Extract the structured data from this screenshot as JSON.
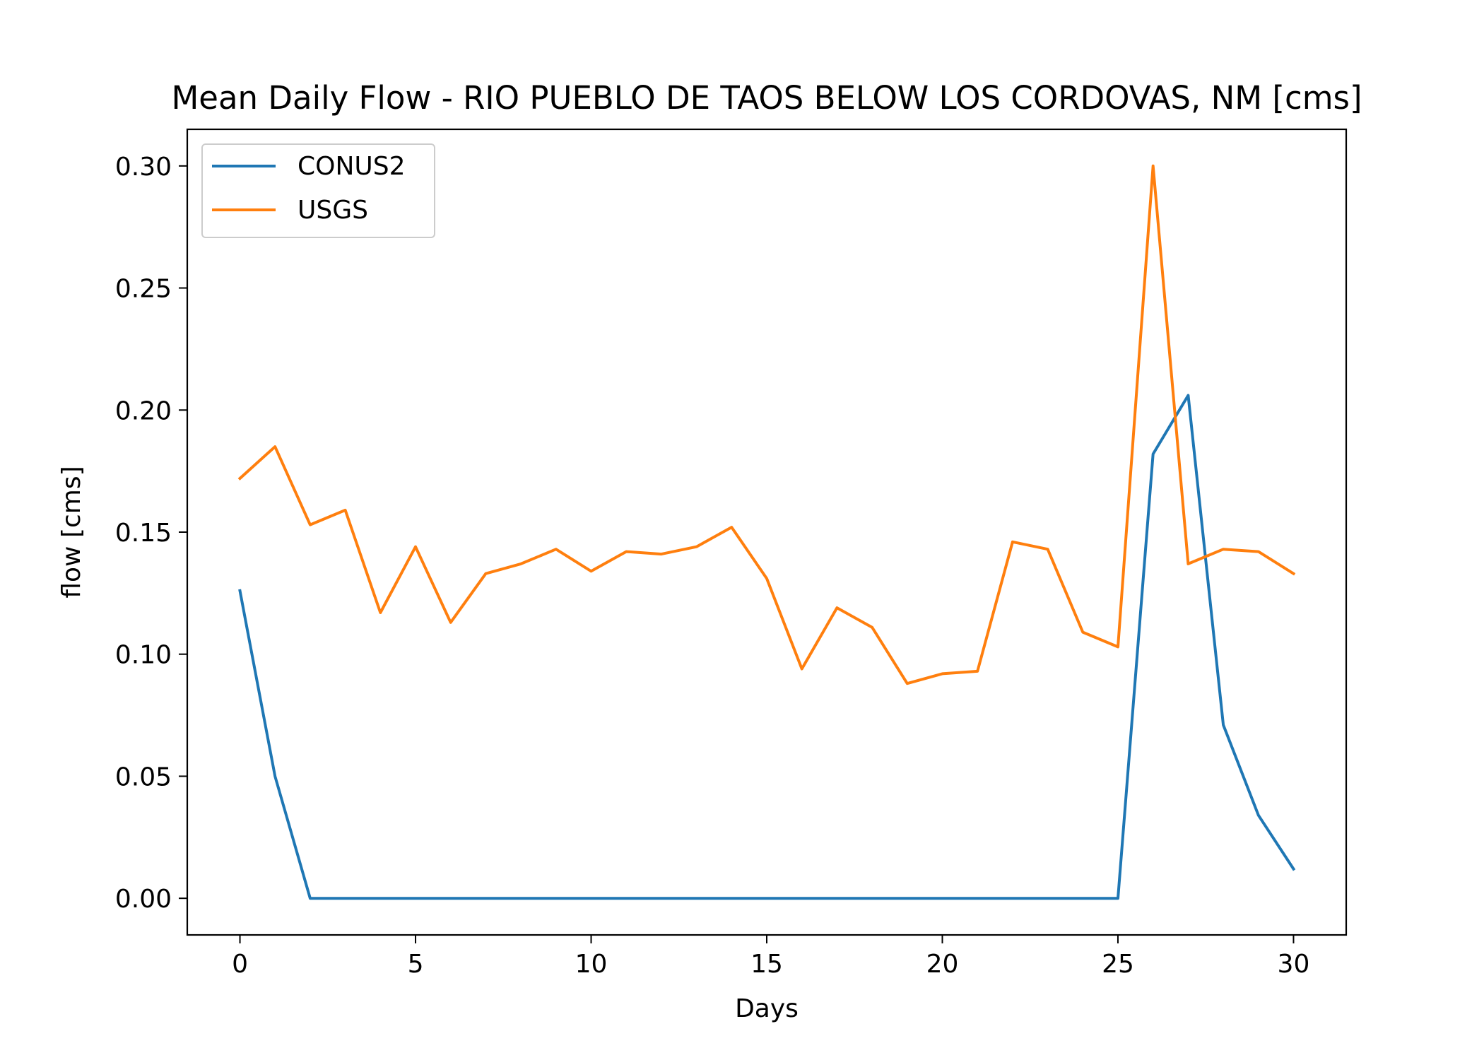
{
  "chart_data": {
    "type": "line",
    "title": "Mean Daily Flow - RIO PUEBLO DE TAOS BELOW LOS CORDOVAS, NM [cms]",
    "xlabel": "Days",
    "ylabel": "flow [cms]",
    "xlim": [
      -1.5,
      31.5
    ],
    "ylim": [
      -0.015,
      0.315
    ],
    "xticks": [
      0,
      5,
      10,
      15,
      20,
      25,
      30
    ],
    "xtick_labels": [
      "0",
      "5",
      "10",
      "15",
      "20",
      "25",
      "30"
    ],
    "yticks": [
      0.0,
      0.05,
      0.1,
      0.15,
      0.2,
      0.25,
      0.3
    ],
    "ytick_labels": [
      "0.00",
      "0.05",
      "0.10",
      "0.15",
      "0.20",
      "0.25",
      "0.30"
    ],
    "grid": false,
    "legend_position": "top-left",
    "x": [
      0,
      1,
      2,
      3,
      4,
      5,
      6,
      7,
      8,
      9,
      10,
      11,
      12,
      13,
      14,
      15,
      16,
      17,
      18,
      19,
      20,
      21,
      22,
      23,
      24,
      25,
      26,
      27,
      28,
      29,
      30
    ],
    "series": [
      {
        "name": "CONUS2",
        "color": "#1f77b4",
        "values": [
          0.126,
          0.05,
          0.0,
          0.0,
          0.0,
          0.0,
          0.0,
          0.0,
          0.0,
          0.0,
          0.0,
          0.0,
          0.0,
          0.0,
          0.0,
          0.0,
          0.0,
          0.0,
          0.0,
          0.0,
          0.0,
          0.0,
          0.0,
          0.0,
          0.0,
          0.0,
          0.182,
          0.206,
          0.071,
          0.034,
          0.012
        ]
      },
      {
        "name": "USGS",
        "color": "#ff7f0e",
        "values": [
          0.172,
          0.185,
          0.153,
          0.159,
          0.117,
          0.144,
          0.113,
          0.133,
          0.137,
          0.143,
          0.134,
          0.142,
          0.141,
          0.144,
          0.152,
          0.131,
          0.094,
          0.119,
          0.111,
          0.088,
          0.092,
          0.093,
          0.146,
          0.143,
          0.109,
          0.103,
          0.3,
          0.137,
          0.143,
          0.142,
          0.133
        ]
      }
    ]
  }
}
